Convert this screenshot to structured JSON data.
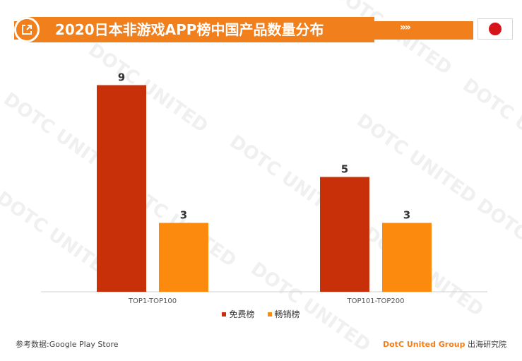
{
  "header": {
    "title": "2020日本非游戏APP榜中国产品数量分布",
    "chevrons": "»»",
    "flag": "japan-flag"
  },
  "colors": {
    "accent": "#f07f1c",
    "free": "#c8300a",
    "paid": "#fb8a0e",
    "axis": "#d0d0d0",
    "label": "#333333"
  },
  "watermark_text": "DOTC UNITED",
  "chart_data": {
    "type": "bar",
    "categories": [
      "TOP1-TOP100",
      "TOP101-TOP200"
    ],
    "series": [
      {
        "name": "免费榜",
        "values": [
          9,
          5
        ]
      },
      {
        "name": "畅销榜",
        "values": [
          3,
          3
        ]
      }
    ],
    "title": "2020日本非游戏APP榜中国产品数量分布",
    "xlabel": "",
    "ylabel": "",
    "ylim": [
      0,
      10
    ],
    "grid": false,
    "legend_position": "bottom-center",
    "data_labels": true
  },
  "legend": {
    "items": [
      {
        "label": "免费榜"
      },
      {
        "label": "畅销榜"
      }
    ]
  },
  "footer": {
    "source": "参考数据:Google Play Store",
    "brand_main": "DotC United Group",
    "brand_sub": "出海研究院"
  }
}
